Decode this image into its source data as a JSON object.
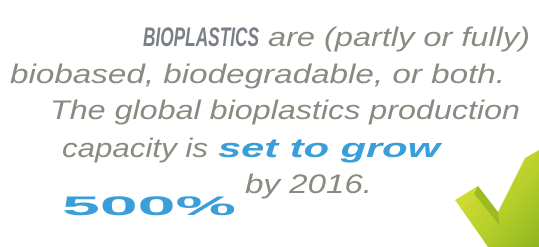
{
  "lines": [
    {
      "parts": [
        "BIOPLASTICS",
        "are (partly or fully)"
      ]
    },
    {
      "parts": [
        "biobased, biodegradable, or both."
      ]
    },
    {
      "parts": [
        "The global bioplastics production"
      ]
    },
    {
      "parts": [
        "capacity is",
        "set to grow"
      ]
    },
    {
      "parts": [
        "500%",
        "by 2016."
      ]
    }
  ]
}
